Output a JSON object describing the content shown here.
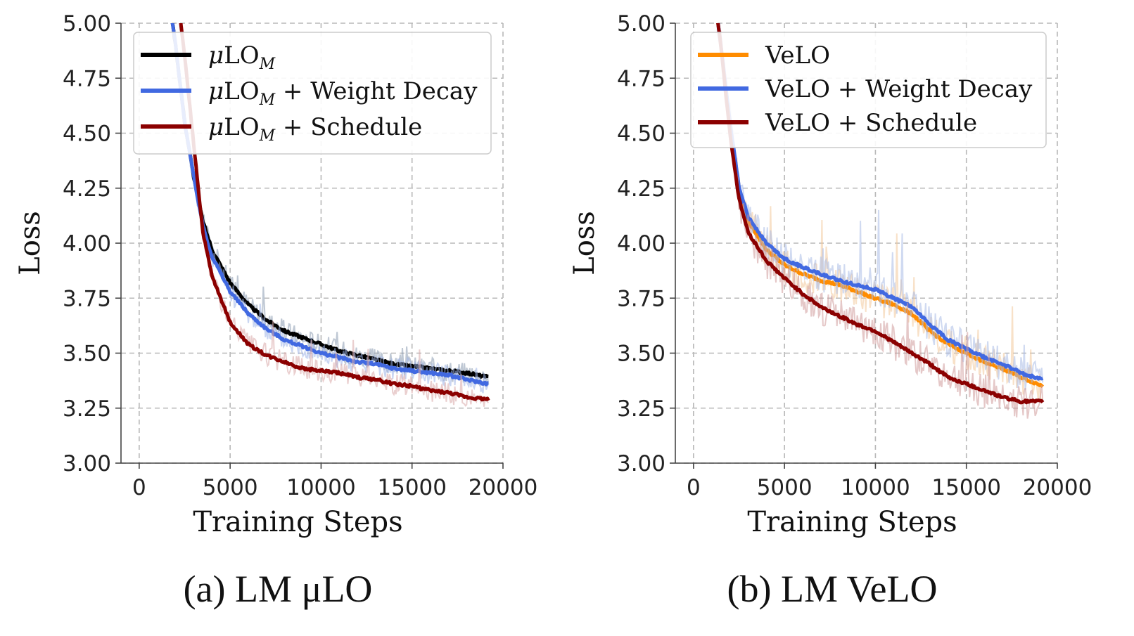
{
  "chart_data": [
    {
      "type": "line",
      "caption": "(a) LM μLO",
      "xlabel": "Training Steps",
      "ylabel": "Loss",
      "xlim": [
        -1000,
        20000
      ],
      "ylim": [
        3.0,
        5.0
      ],
      "xticks": [
        "0",
        "5000",
        "10000",
        "15000",
        "20000"
      ],
      "xtick_values": [
        0,
        5000,
        10000,
        15000,
        20000
      ],
      "yticks": [
        "3.00",
        "3.25",
        "3.50",
        "3.75",
        "4.00",
        "4.25",
        "4.50",
        "4.75",
        "5.00"
      ],
      "ytick_values": [
        3.0,
        3.25,
        3.5,
        3.75,
        4.0,
        4.25,
        4.5,
        4.75,
        5.0
      ],
      "grid": true,
      "legend_position": "top-right",
      "series": [
        {
          "name": "μLO",
          "sub": "M",
          "suffix": "",
          "color": "#000000",
          "band_color": "#8a9ab0",
          "x": [
            1500,
            2000,
            2500,
            3000,
            3500,
            4000,
            5000,
            6000,
            7000,
            8000,
            9000,
            10000,
            11000,
            12000,
            13000,
            14000,
            15000,
            16000,
            17000,
            18000,
            19200
          ],
          "y": [
            5.2,
            4.9,
            4.55,
            4.3,
            4.1,
            3.97,
            3.82,
            3.72,
            3.65,
            3.6,
            3.57,
            3.54,
            3.51,
            3.49,
            3.47,
            3.45,
            3.44,
            3.43,
            3.42,
            3.41,
            3.39
          ]
        },
        {
          "name": "μLO",
          "sub": "M",
          "suffix": " + Weight Decay",
          "color": "#4169e1",
          "band_color": "#9fb4e8",
          "x": [
            1500,
            2000,
            2500,
            3000,
            3500,
            4000,
            5000,
            6000,
            7000,
            8000,
            9000,
            10000,
            11000,
            12000,
            13000,
            14000,
            15000,
            16000,
            17000,
            18000,
            19200
          ],
          "y": [
            5.2,
            4.9,
            4.55,
            4.3,
            4.08,
            3.94,
            3.78,
            3.68,
            3.61,
            3.56,
            3.53,
            3.5,
            3.48,
            3.46,
            3.45,
            3.43,
            3.42,
            3.41,
            3.4,
            3.38,
            3.36
          ]
        },
        {
          "name": "μLO",
          "sub": "M",
          "suffix": " + Schedule",
          "color": "#8b0000",
          "band_color": "#d9a7a7",
          "x": [
            2000,
            2500,
            3000,
            3500,
            4000,
            5000,
            6000,
            7000,
            8000,
            9000,
            10000,
            11000,
            12000,
            13000,
            14000,
            15000,
            16000,
            17000,
            18000,
            19200
          ],
          "y": [
            5.2,
            4.85,
            4.45,
            4.05,
            3.85,
            3.64,
            3.54,
            3.49,
            3.46,
            3.43,
            3.42,
            3.41,
            3.39,
            3.38,
            3.36,
            3.35,
            3.33,
            3.32,
            3.3,
            3.29
          ]
        }
      ]
    },
    {
      "type": "line",
      "caption": "(b) LM VeLO",
      "xlabel": "Training Steps",
      "ylabel": "Loss",
      "xlim": [
        -1000,
        20000
      ],
      "ylim": [
        3.0,
        5.0
      ],
      "xticks": [
        "0",
        "5000",
        "10000",
        "15000",
        "20000"
      ],
      "xtick_values": [
        0,
        5000,
        10000,
        15000,
        20000
      ],
      "yticks": [
        "3.00",
        "3.25",
        "3.50",
        "3.75",
        "4.00",
        "4.25",
        "4.50",
        "4.75",
        "5.00"
      ],
      "ytick_values": [
        3.0,
        3.25,
        3.5,
        3.75,
        4.0,
        4.25,
        4.5,
        4.75,
        5.0
      ],
      "grid": true,
      "legend_position": "top-right",
      "series": [
        {
          "name": "VeLO",
          "sub": "",
          "suffix": "",
          "color": "#ff8c00",
          "band_color": "#f2c89a",
          "x": [
            1200,
            1500,
            2000,
            2500,
            3000,
            4000,
            5000,
            6000,
            7000,
            8000,
            9000,
            10000,
            11000,
            12000,
            13000,
            14000,
            15000,
            16000,
            17000,
            18000,
            19200
          ],
          "y": [
            5.1,
            4.9,
            4.55,
            4.25,
            4.1,
            3.97,
            3.9,
            3.86,
            3.83,
            3.81,
            3.78,
            3.75,
            3.72,
            3.68,
            3.6,
            3.54,
            3.5,
            3.46,
            3.43,
            3.39,
            3.35
          ]
        },
        {
          "name": "VeLO",
          "sub": "",
          "suffix": " + Weight Decay",
          "color": "#4169e1",
          "band_color": "#a9bbe6",
          "x": [
            1200,
            1500,
            2000,
            2500,
            3000,
            4000,
            5000,
            6000,
            7000,
            8000,
            9000,
            10000,
            11000,
            12000,
            13000,
            14000,
            15000,
            16000,
            17000,
            18000,
            19200
          ],
          "y": [
            5.1,
            4.9,
            4.55,
            4.26,
            4.12,
            4.0,
            3.93,
            3.89,
            3.86,
            3.83,
            3.81,
            3.79,
            3.75,
            3.71,
            3.63,
            3.56,
            3.52,
            3.48,
            3.45,
            3.41,
            3.38
          ]
        },
        {
          "name": "VeLO",
          "sub": "",
          "suffix": " + Schedule",
          "color": "#8b0000",
          "band_color": "#cf9a9a",
          "x": [
            1200,
            1500,
            2000,
            2500,
            3000,
            4000,
            5000,
            6000,
            7000,
            8000,
            9000,
            10000,
            11000,
            12000,
            13000,
            14000,
            15000,
            16000,
            17000,
            18000,
            19200
          ],
          "y": [
            5.1,
            4.9,
            4.5,
            4.2,
            4.05,
            3.92,
            3.84,
            3.77,
            3.71,
            3.67,
            3.63,
            3.6,
            3.55,
            3.5,
            3.45,
            3.39,
            3.36,
            3.33,
            3.3,
            3.28,
            3.28
          ]
        }
      ]
    }
  ]
}
